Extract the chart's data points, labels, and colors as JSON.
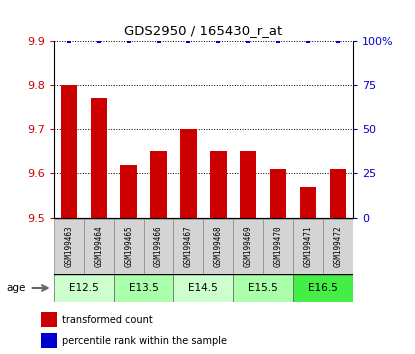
{
  "title": "GDS2950 / 165430_r_at",
  "samples": [
    "GSM199463",
    "GSM199464",
    "GSM199465",
    "GSM199466",
    "GSM199467",
    "GSM199468",
    "GSM199469",
    "GSM199470",
    "GSM199471",
    "GSM199472"
  ],
  "transformed_counts": [
    9.8,
    9.77,
    9.62,
    9.65,
    9.7,
    9.65,
    9.65,
    9.61,
    9.57,
    9.61
  ],
  "percentile_ranks": [
    100,
    100,
    100,
    100,
    100,
    100,
    100,
    100,
    100,
    100
  ],
  "age_groups": [
    {
      "label": "E12.5",
      "start": 0,
      "end": 1,
      "color": "#ccffcc"
    },
    {
      "label": "E13.5",
      "start": 2,
      "end": 3,
      "color": "#aaffaa"
    },
    {
      "label": "E14.5",
      "start": 4,
      "end": 5,
      "color": "#ccffcc"
    },
    {
      "label": "E15.5",
      "start": 6,
      "end": 7,
      "color": "#aaffaa"
    },
    {
      "label": "E16.5",
      "start": 8,
      "end": 9,
      "color": "#44ee44"
    }
  ],
  "ylim_left": [
    9.5,
    9.9
  ],
  "ylim_right": [
    0,
    100
  ],
  "bar_color": "#cc0000",
  "dot_color": "#0000cc",
  "yticks_left": [
    9.5,
    9.6,
    9.7,
    9.8,
    9.9
  ],
  "yticks_right": [
    0,
    25,
    50,
    75,
    100
  ],
  "ytick_labels_right": [
    "0",
    "25",
    "50",
    "75",
    "100%"
  ],
  "sample_box_color": "#d4d4d4",
  "grid_color": "black",
  "grid_linestyle": ":"
}
